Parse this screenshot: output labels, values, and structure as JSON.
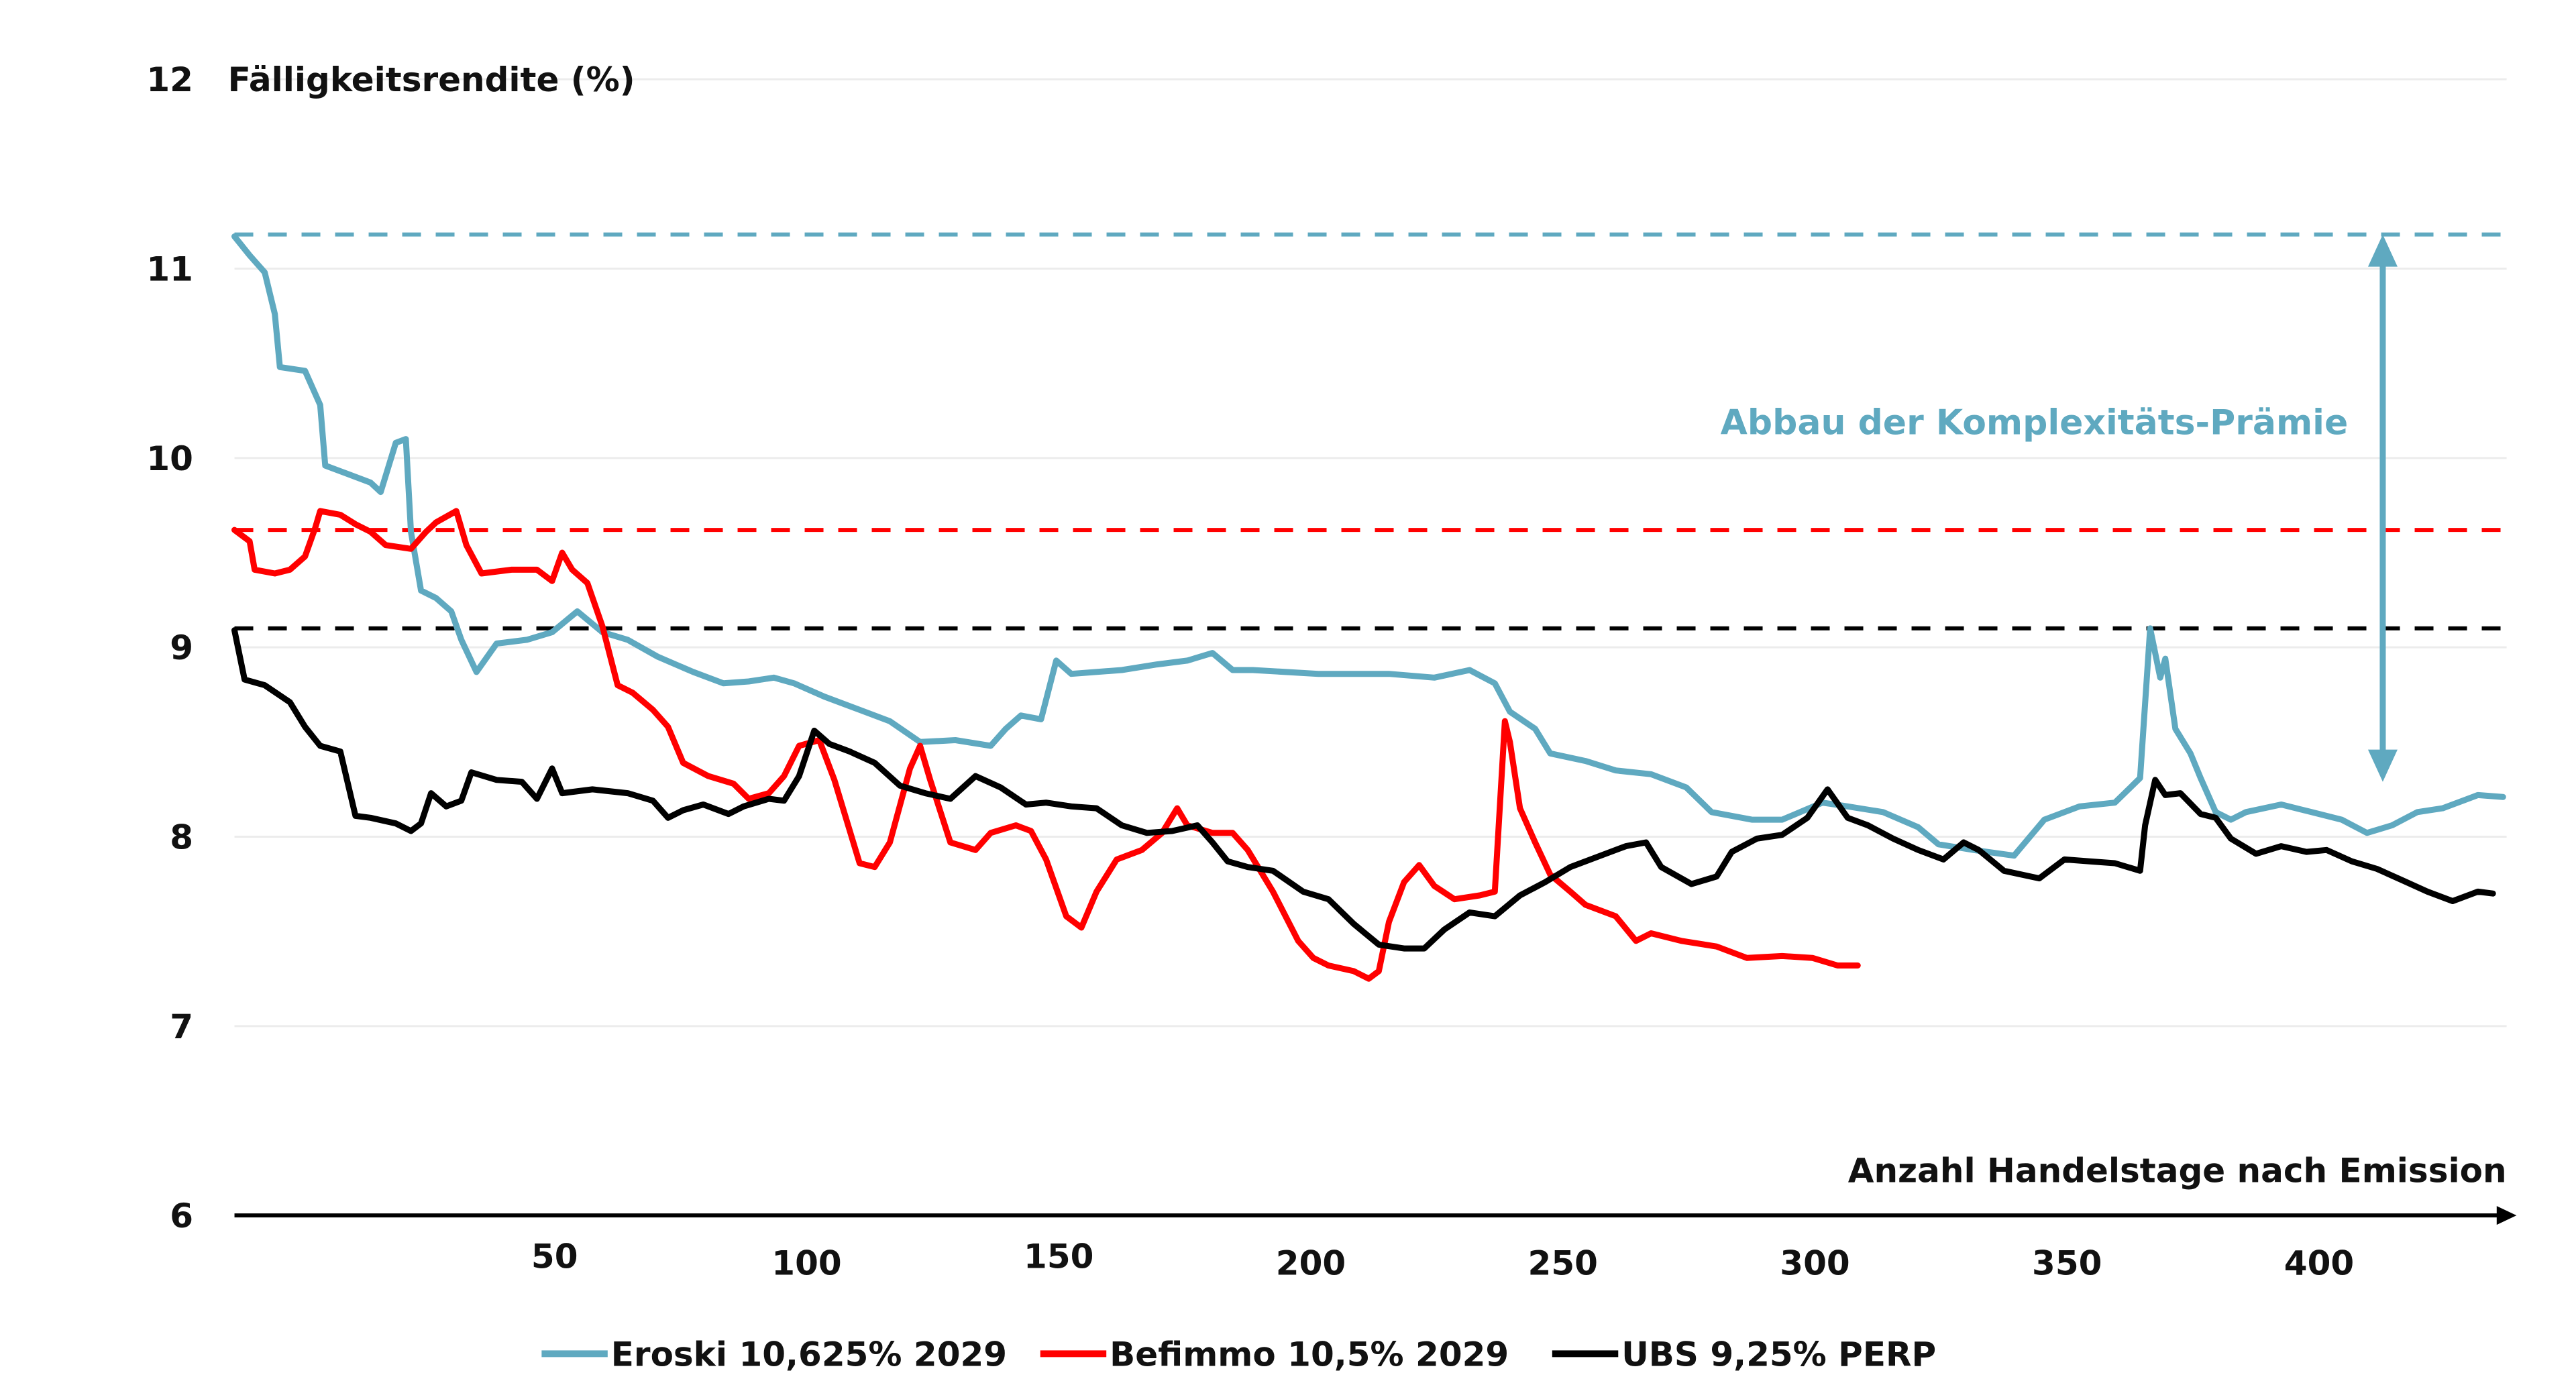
{
  "chart_data": {
    "type": "line",
    "title": "",
    "ylabel": "Fälligkeitsrendite (%)",
    "xlabel": "Anzahl Handelstage nach Emission",
    "ylim": [
      6,
      12
    ],
    "xlim": [
      0,
      452
    ],
    "y_ticks": [
      "12",
      "11",
      "10",
      "9",
      "8",
      "7",
      "6"
    ],
    "y_tick_values": [
      12,
      11,
      10,
      9,
      8,
      7,
      6
    ],
    "x_ticks": [
      "50",
      "100",
      "150",
      "200",
      "250",
      "300",
      "350",
      "400"
    ],
    "x_tick_values": [
      50,
      100,
      150,
      200,
      250,
      300,
      350,
      400
    ],
    "grid": "horizontal",
    "legend_position": "bottom",
    "annotation": {
      "text": "Abbau der Komplexitäts-Prämie",
      "from_value": 11.18,
      "to_value": 8.29,
      "color": "#5fa9c0"
    },
    "reference_lines": [
      {
        "series": "Eroski 10,625% 2029",
        "value": 11.18,
        "color": "#5fa9c0"
      },
      {
        "series": "Befimmo 10,5% 2029",
        "value": 9.62,
        "color": "#ff0000"
      },
      {
        "series": "UBS 9,25% PERP",
        "value": 9.1,
        "color": "#000000"
      }
    ],
    "series": [
      {
        "name": "Eroski 10,625% 2029",
        "color": "#5fa9c0",
        "points": [
          [
            0,
            11.17
          ],
          [
            3,
            11.07
          ],
          [
            6,
            10.98
          ],
          [
            8,
            10.76
          ],
          [
            9,
            10.48
          ],
          [
            14,
            10.46
          ],
          [
            17,
            10.28
          ],
          [
            18,
            9.96
          ],
          [
            22,
            9.92
          ],
          [
            27,
            9.87
          ],
          [
            29,
            9.82
          ],
          [
            32,
            10.08
          ],
          [
            34,
            10.1
          ],
          [
            35,
            9.61
          ],
          [
            37,
            9.3
          ],
          [
            40,
            9.26
          ],
          [
            43,
            9.19
          ],
          [
            45,
            9.04
          ],
          [
            48,
            8.87
          ],
          [
            52,
            9.02
          ],
          [
            58,
            9.04
          ],
          [
            63,
            9.08
          ],
          [
            68,
            9.19
          ],
          [
            73,
            9.08
          ],
          [
            78,
            9.04
          ],
          [
            84,
            8.95
          ],
          [
            91,
            8.87
          ],
          [
            97,
            8.81
          ],
          [
            102,
            8.82
          ],
          [
            107,
            8.84
          ],
          [
            111,
            8.81
          ],
          [
            117,
            8.74
          ],
          [
            124,
            8.67
          ],
          [
            130,
            8.61
          ],
          [
            136,
            8.5
          ],
          [
            143,
            8.51
          ],
          [
            150,
            8.48
          ],
          [
            153,
            8.57
          ],
          [
            156,
            8.64
          ],
          [
            160,
            8.62
          ],
          [
            163,
            8.93
          ],
          [
            166,
            8.86
          ],
          [
            176,
            8.88
          ],
          [
            183,
            8.91
          ],
          [
            189,
            8.93
          ],
          [
            194,
            8.97
          ],
          [
            198,
            8.88
          ],
          [
            202,
            8.88
          ],
          [
            215,
            8.86
          ],
          [
            229,
            8.86
          ],
          [
            238,
            8.84
          ],
          [
            245,
            8.88
          ],
          [
            250,
            8.81
          ],
          [
            253,
            8.66
          ],
          [
            258,
            8.57
          ],
          [
            261,
            8.44
          ],
          [
            268,
            8.4
          ],
          [
            274,
            8.35
          ],
          [
            281,
            8.33
          ],
          [
            288,
            8.26
          ],
          [
            293,
            8.13
          ],
          [
            301,
            8.09
          ],
          [
            307,
            8.09
          ],
          [
            315,
            8.18
          ],
          [
            320,
            8.16
          ],
          [
            327,
            8.13
          ],
          [
            334,
            8.05
          ],
          [
            338,
            7.96
          ],
          [
            345,
            7.93
          ],
          [
            353,
            7.9
          ],
          [
            359,
            8.09
          ],
          [
            366,
            8.16
          ],
          [
            373,
            8.18
          ],
          [
            378,
            8.31
          ],
          [
            380,
            9.1
          ],
          [
            382,
            8.84
          ],
          [
            383,
            8.94
          ],
          [
            385,
            8.57
          ],
          [
            388,
            8.44
          ],
          [
            390,
            8.31
          ],
          [
            393,
            8.13
          ],
          [
            396,
            8.09
          ],
          [
            399,
            8.13
          ],
          [
            406,
            8.17
          ],
          [
            412,
            8.13
          ],
          [
            418,
            8.09
          ],
          [
            423,
            8.02
          ],
          [
            428,
            8.06
          ],
          [
            433,
            8.13
          ],
          [
            438,
            8.15
          ],
          [
            445,
            8.22
          ],
          [
            450,
            8.21
          ]
        ]
      },
      {
        "name": "Befimmo 10,5% 2029",
        "color": "#ff0000",
        "points": [
          [
            0,
            9.62
          ],
          [
            3,
            9.56
          ],
          [
            4,
            9.41
          ],
          [
            8,
            9.39
          ],
          [
            11,
            9.41
          ],
          [
            14,
            9.48
          ],
          [
            16,
            9.63
          ],
          [
            17,
            9.72
          ],
          [
            21,
            9.7
          ],
          [
            24,
            9.65
          ],
          [
            27,
            9.61
          ],
          [
            30,
            9.54
          ],
          [
            35,
            9.52
          ],
          [
            38,
            9.61
          ],
          [
            40,
            9.66
          ],
          [
            44,
            9.72
          ],
          [
            46,
            9.54
          ],
          [
            49,
            9.39
          ],
          [
            55,
            9.41
          ],
          [
            60,
            9.41
          ],
          [
            63,
            9.35
          ],
          [
            65,
            9.5
          ],
          [
            67,
            9.41
          ],
          [
            70,
            9.34
          ],
          [
            73,
            9.11
          ],
          [
            76,
            8.8
          ],
          [
            79,
            8.76
          ],
          [
            83,
            8.67
          ],
          [
            86,
            8.58
          ],
          [
            89,
            8.39
          ],
          [
            94,
            8.32
          ],
          [
            99,
            8.28
          ],
          [
            102,
            8.2
          ],
          [
            106,
            8.23
          ],
          [
            109,
            8.32
          ],
          [
            112,
            8.48
          ],
          [
            116,
            8.51
          ],
          [
            119,
            8.3
          ],
          [
            124,
            7.86
          ],
          [
            127,
            7.84
          ],
          [
            130,
            7.97
          ],
          [
            134,
            8.36
          ],
          [
            136,
            8.48
          ],
          [
            138,
            8.3
          ],
          [
            142,
            7.97
          ],
          [
            147,
            7.93
          ],
          [
            150,
            8.02
          ],
          [
            155,
            8.06
          ],
          [
            158,
            8.03
          ],
          [
            161,
            7.88
          ],
          [
            165,
            7.58
          ],
          [
            168,
            7.52
          ],
          [
            171,
            7.71
          ],
          [
            175,
            7.88
          ],
          [
            180,
            7.93
          ],
          [
            184,
            8.02
          ],
          [
            187,
            8.15
          ],
          [
            189,
            8.06
          ],
          [
            194,
            8.02
          ],
          [
            198,
            8.02
          ],
          [
            201,
            7.93
          ],
          [
            206,
            7.71
          ],
          [
            211,
            7.45
          ],
          [
            214,
            7.36
          ],
          [
            217,
            7.32
          ],
          [
            222,
            7.29
          ],
          [
            225,
            7.25
          ],
          [
            227,
            7.29
          ],
          [
            229,
            7.55
          ],
          [
            232,
            7.76
          ],
          [
            235,
            7.85
          ],
          [
            238,
            7.74
          ],
          [
            242,
            7.67
          ],
          [
            247,
            7.69
          ],
          [
            250,
            7.71
          ],
          [
            252,
            8.61
          ],
          [
            253,
            8.5
          ],
          [
            255,
            8.15
          ],
          [
            258,
            7.97
          ],
          [
            261,
            7.8
          ],
          [
            265,
            7.71
          ],
          [
            268,
            7.64
          ],
          [
            274,
            7.58
          ],
          [
            278,
            7.45
          ],
          [
            281,
            7.49
          ],
          [
            287,
            7.45
          ],
          [
            294,
            7.42
          ],
          [
            300,
            7.36
          ],
          [
            307,
            7.37
          ],
          [
            313,
            7.36
          ],
          [
            318,
            7.32
          ],
          [
            322,
            7.32
          ]
        ]
      },
      {
        "name": "UBS 9,25% PERP",
        "color": "#000000",
        "points": [
          [
            0,
            9.09
          ],
          [
            2,
            8.83
          ],
          [
            6,
            8.8
          ],
          [
            11,
            8.71
          ],
          [
            14,
            8.58
          ],
          [
            17,
            8.48
          ],
          [
            21,
            8.45
          ],
          [
            24,
            8.11
          ],
          [
            27,
            8.1
          ],
          [
            32,
            8.07
          ],
          [
            35,
            8.03
          ],
          [
            37,
            8.07
          ],
          [
            39,
            8.23
          ],
          [
            42,
            8.16
          ],
          [
            45,
            8.19
          ],
          [
            47,
            8.34
          ],
          [
            52,
            8.3
          ],
          [
            57,
            8.29
          ],
          [
            60,
            8.2
          ],
          [
            63,
            8.36
          ],
          [
            65,
            8.23
          ],
          [
            71,
            8.25
          ],
          [
            78,
            8.23
          ],
          [
            83,
            8.19
          ],
          [
            86,
            8.1
          ],
          [
            89,
            8.14
          ],
          [
            93,
            8.17
          ],
          [
            98,
            8.12
          ],
          [
            101,
            8.16
          ],
          [
            106,
            8.2
          ],
          [
            109,
            8.19
          ],
          [
            112,
            8.32
          ],
          [
            115,
            8.56
          ],
          [
            118,
            8.49
          ],
          [
            122,
            8.45
          ],
          [
            127,
            8.39
          ],
          [
            132,
            8.27
          ],
          [
            137,
            8.23
          ],
          [
            142,
            8.2
          ],
          [
            147,
            8.32
          ],
          [
            152,
            8.26
          ],
          [
            157,
            8.17
          ],
          [
            161,
            8.18
          ],
          [
            166,
            8.16
          ],
          [
            171,
            8.15
          ],
          [
            176,
            8.06
          ],
          [
            181,
            8.02
          ],
          [
            186,
            8.03
          ],
          [
            191,
            8.06
          ],
          [
            194,
            7.97
          ],
          [
            197,
            7.87
          ],
          [
            201,
            7.84
          ],
          [
            206,
            7.82
          ],
          [
            212,
            7.71
          ],
          [
            217,
            7.67
          ],
          [
            222,
            7.54
          ],
          [
            227,
            7.43
          ],
          [
            232,
            7.41
          ],
          [
            236,
            7.41
          ],
          [
            240,
            7.51
          ],
          [
            245,
            7.6
          ],
          [
            250,
            7.58
          ],
          [
            255,
            7.69
          ],
          [
            260,
            7.76
          ],
          [
            265,
            7.84
          ],
          [
            271,
            7.9
          ],
          [
            276,
            7.95
          ],
          [
            280,
            7.97
          ],
          [
            283,
            7.84
          ],
          [
            289,
            7.75
          ],
          [
            294,
            7.79
          ],
          [
            297,
            7.92
          ],
          [
            302,
            7.99
          ],
          [
            307,
            8.01
          ],
          [
            312,
            8.1
          ],
          [
            316,
            8.25
          ],
          [
            320,
            8.1
          ],
          [
            324,
            8.06
          ],
          [
            329,
            7.99
          ],
          [
            334,
            7.93
          ],
          [
            339,
            7.88
          ],
          [
            343,
            7.97
          ],
          [
            346,
            7.93
          ],
          [
            351,
            7.82
          ],
          [
            358,
            7.78
          ],
          [
            363,
            7.88
          ],
          [
            368,
            7.87
          ],
          [
            373,
            7.86
          ],
          [
            378,
            7.82
          ],
          [
            379,
            8.06
          ],
          [
            381,
            8.3
          ],
          [
            383,
            8.22
          ],
          [
            386,
            8.23
          ],
          [
            390,
            8.12
          ],
          [
            393,
            8.1
          ],
          [
            396,
            7.99
          ],
          [
            401,
            7.91
          ],
          [
            406,
            7.95
          ],
          [
            411,
            7.92
          ],
          [
            415,
            7.93
          ],
          [
            420,
            7.87
          ],
          [
            425,
            7.83
          ],
          [
            430,
            7.77
          ],
          [
            435,
            7.71
          ],
          [
            440,
            7.66
          ],
          [
            445,
            7.71
          ],
          [
            448,
            7.7
          ]
        ]
      }
    ]
  }
}
